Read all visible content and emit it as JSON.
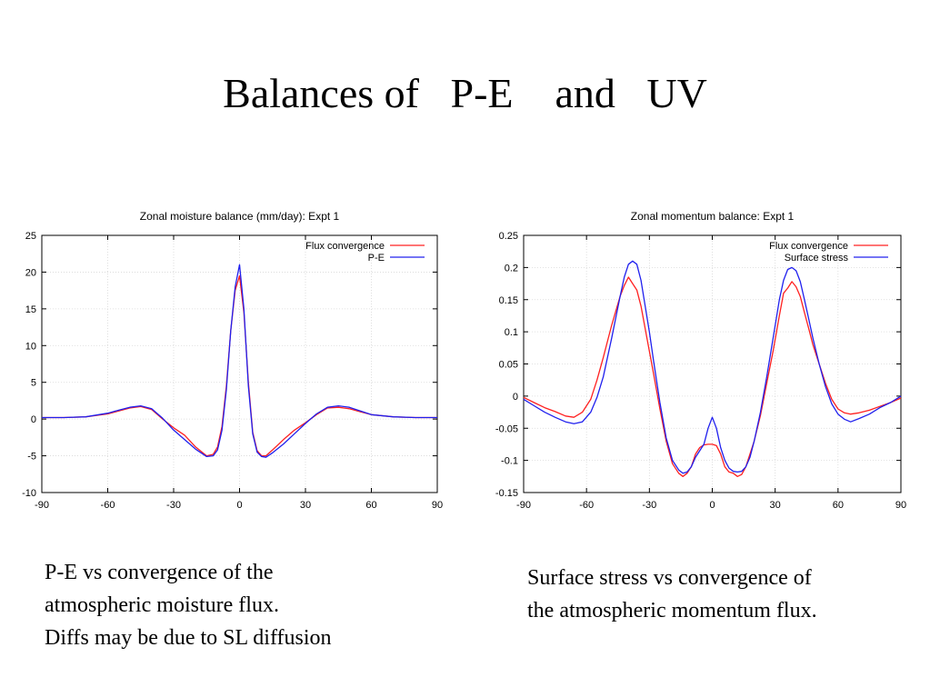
{
  "slide": {
    "title": "Balances of   P-E    and   UV",
    "caption_left": [
      "P-E vs convergence of the",
      "atmospheric moisture flux.",
      "Diffs may be due to SL diffusion"
    ],
    "caption_right": [
      "Surface stress vs convergence of",
      "the atmospheric momentum flux."
    ]
  },
  "chart_data": [
    {
      "type": "line",
      "title": "Zonal moisture balance (mm/day): Expt 1",
      "xlim": [
        -90,
        90
      ],
      "ylim": [
        -10,
        25
      ],
      "xticks": [
        -90,
        -60,
        -30,
        0,
        30,
        60,
        90
      ],
      "yticks": [
        -10,
        -5,
        0,
        5,
        10,
        15,
        20,
        25
      ],
      "grid": true,
      "legend_position": "top-right",
      "x": [
        -90,
        -80,
        -70,
        -60,
        -55,
        -50,
        -45,
        -40,
        -35,
        -30,
        -25,
        -20,
        -15,
        -12,
        -10,
        -8,
        -6,
        -4,
        -2,
        0,
        2,
        4,
        6,
        8,
        10,
        12,
        15,
        20,
        25,
        30,
        35,
        40,
        45,
        50,
        55,
        60,
        70,
        80,
        90
      ],
      "series": [
        {
          "name": "Flux convergence",
          "color": "#ff2020",
          "values": [
            0.2,
            0.2,
            0.3,
            0.7,
            1.1,
            1.5,
            1.7,
            1.3,
            0.0,
            -1.2,
            -2.2,
            -3.8,
            -5.0,
            -4.8,
            -3.8,
            -1.0,
            4.5,
            12.0,
            17.5,
            19.5,
            14.5,
            5.0,
            -1.8,
            -4.3,
            -5.0,
            -5.0,
            -4.2,
            -2.8,
            -1.5,
            -0.5,
            0.6,
            1.5,
            1.6,
            1.4,
            1.0,
            0.6,
            0.3,
            0.2,
            0.2
          ]
        },
        {
          "name": "P-E",
          "color": "#2020ee",
          "values": [
            0.2,
            0.2,
            0.3,
            0.8,
            1.2,
            1.6,
            1.8,
            1.4,
            0.1,
            -1.5,
            -2.8,
            -4.1,
            -5.1,
            -5.0,
            -4.2,
            -1.5,
            4.0,
            12.0,
            18.0,
            21.0,
            15.0,
            4.5,
            -2.0,
            -4.5,
            -5.1,
            -5.2,
            -4.6,
            -3.4,
            -2.0,
            -0.6,
            0.7,
            1.6,
            1.8,
            1.6,
            1.1,
            0.6,
            0.3,
            0.2,
            0.2
          ]
        }
      ]
    },
    {
      "type": "line",
      "title": "Zonal momentum balance: Expt 1",
      "xlim": [
        -90,
        90
      ],
      "ylim": [
        -0.15,
        0.25
      ],
      "xticks": [
        -90,
        -60,
        -30,
        0,
        30,
        60,
        90
      ],
      "yticks": [
        -0.15,
        -0.1,
        -0.05,
        0,
        0.05,
        0.1,
        0.15,
        0.2,
        0.25
      ],
      "ytick_labels": [
        "-0.15",
        "-0.1",
        "-0.05",
        "0",
        "0.05",
        "0.1",
        "0.15",
        "0.2",
        "0.25"
      ],
      "grid": true,
      "legend_position": "top-right",
      "x": [
        -90,
        -85,
        -80,
        -75,
        -70,
        -66,
        -62,
        -58,
        -55,
        -52,
        -48,
        -44,
        -42,
        -40,
        -38,
        -36,
        -34,
        -32,
        -30,
        -28,
        -25,
        -22,
        -19,
        -16,
        -14,
        -12,
        -10,
        -8,
        -6,
        -4,
        -2,
        0,
        2,
        4,
        6,
        8,
        10,
        12,
        14,
        16,
        18,
        20,
        23,
        26,
        29,
        32,
        34,
        36,
        38,
        40,
        42,
        44,
        46,
        48,
        51,
        54,
        57,
        60,
        63,
        66,
        70,
        75,
        80,
        85,
        90
      ],
      "series": [
        {
          "name": "Flux convergence",
          "color": "#ff2020",
          "values": [
            -0.002,
            -0.01,
            -0.018,
            -0.024,
            -0.031,
            -0.033,
            -0.025,
            -0.005,
            0.025,
            0.06,
            0.11,
            0.155,
            0.172,
            0.185,
            0.175,
            0.165,
            0.14,
            0.105,
            0.07,
            0.035,
            -0.02,
            -0.07,
            -0.105,
            -0.12,
            -0.125,
            -0.12,
            -0.11,
            -0.09,
            -0.08,
            -0.076,
            -0.075,
            -0.075,
            -0.077,
            -0.09,
            -0.11,
            -0.118,
            -0.12,
            -0.125,
            -0.122,
            -0.11,
            -0.09,
            -0.07,
            -0.03,
            0.02,
            0.07,
            0.125,
            0.16,
            0.168,
            0.178,
            0.17,
            0.155,
            0.13,
            0.105,
            0.08,
            0.05,
            0.02,
            -0.005,
            -0.02,
            -0.026,
            -0.028,
            -0.026,
            -0.022,
            -0.016,
            -0.01,
            -0.003
          ]
        },
        {
          "name": "Surface stress",
          "color": "#2020ee",
          "values": [
            -0.005,
            -0.015,
            -0.025,
            -0.033,
            -0.04,
            -0.043,
            -0.04,
            -0.025,
            -0.002,
            0.03,
            0.09,
            0.155,
            0.185,
            0.205,
            0.21,
            0.205,
            0.18,
            0.14,
            0.1,
            0.055,
            -0.01,
            -0.065,
            -0.1,
            -0.115,
            -0.12,
            -0.118,
            -0.11,
            -0.095,
            -0.085,
            -0.075,
            -0.05,
            -0.033,
            -0.05,
            -0.08,
            -0.1,
            -0.112,
            -0.117,
            -0.118,
            -0.117,
            -0.11,
            -0.095,
            -0.07,
            -0.025,
            0.03,
            0.09,
            0.15,
            0.18,
            0.197,
            0.2,
            0.195,
            0.178,
            0.15,
            0.12,
            0.09,
            0.05,
            0.015,
            -0.012,
            -0.028,
            -0.036,
            -0.04,
            -0.035,
            -0.028,
            -0.018,
            -0.01,
            0.0
          ]
        }
      ]
    }
  ]
}
